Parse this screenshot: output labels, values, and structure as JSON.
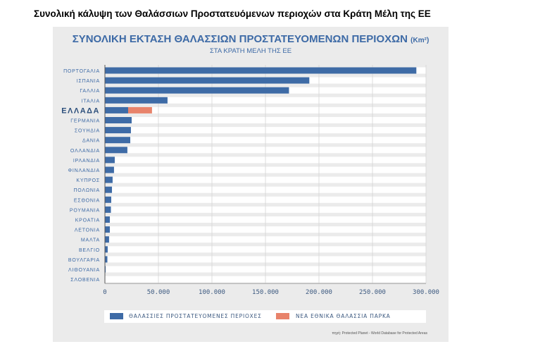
{
  "heading": "Συνολική κάλυψη των Θαλάσσιων Προστατευόμενων περιοχών στα Κράτη Μέλη της ΕΕ",
  "chart_data": {
    "type": "bar",
    "orientation": "horizontal",
    "stacked": true,
    "title": "ΣΥΝΟΛΙΚΗ ΕΚΤΑΣΗ ΘΑΛΑΣΣΙΩΝ ΠΡΟΣΤΑΤΕΥΟΜΕΝΩΝ ΠΕΡΙΟΧΩΝ",
    "title_unit": "(Km²)",
    "subtitle": "ΣΤΑ ΚΡΑΤΗ ΜΕΛΗ ΤΗΣ ΕΕ",
    "categories": [
      "ΠΟΡΤΟΓΑΛΙΑ",
      "ΙΣΠΑΝΙΑ",
      "ΓΑΛΛΙΑ",
      "ΙΤΑΛΙΑ",
      "ΕΛΛΑΔΑ",
      "ΓΕΡΜΑΝΙΑ",
      "ΣΟΥΗΔΙΑ",
      "ΔΑΝΙΑ",
      "ΟΛΛΑΝΔΙΑ",
      "ΙΡΛΑΝΔΙΑ",
      "ΦΙΝΛΑΝΔΙΑ",
      "ΚΥΠΡΟΣ",
      "ΠΟΛΩΝΙΑ",
      "ΕΣΘΟΝΙΑ",
      "ΡΟΥΜΑΝΙΑ",
      "ΚΡΟΑΤΙΑ",
      "ΛΕΤΟΝΙΑ",
      "ΜΑΛΤΑ",
      "ΒΕΛΓΙΟ",
      "ΒΟΥΛΓΑΡΙΑ",
      "ΛΙΘΟΥΑΝΙΑ",
      "ΣΛΟΒΕΝΙΑ"
    ],
    "highlight": "ΕΛΛΑΔΑ",
    "series": [
      {
        "name": "ΘΑΛΑΣΣΙΕΣ ΠΡΟΣΤΑΤΕΥΟΜΕΝΕΣ  ΠΕΡΙΟΧΕΣ",
        "color": "#3e6ba6",
        "values": [
          291000,
          191000,
          172000,
          58500,
          21700,
          25000,
          24300,
          23700,
          21000,
          9200,
          8500,
          7200,
          6600,
          5900,
          5600,
          4600,
          4600,
          3900,
          2600,
          2300,
          700,
          200
        ]
      },
      {
        "name": "ΝΕΑ ΕΘΝΙΚΑ ΘΑΛΑΣΣΙΑ ΠΑΡΚΑ",
        "color": "#e8836b",
        "values": [
          0,
          0,
          0,
          0,
          22300,
          0,
          0,
          0,
          0,
          0,
          0,
          0,
          0,
          0,
          0,
          0,
          0,
          0,
          0,
          0,
          0,
          0
        ]
      }
    ],
    "xlim": [
      0,
      300000
    ],
    "xticks": [
      "0",
      "50.000",
      "100.000",
      "150.000",
      "200.000",
      "250.000",
      "300.000"
    ],
    "xtick_values": [
      0,
      50000,
      100000,
      150000,
      200000,
      250000,
      300000
    ],
    "legend_position": "bottom",
    "source": "πηγή: Protected Planet - World Database for Protected Areas"
  }
}
